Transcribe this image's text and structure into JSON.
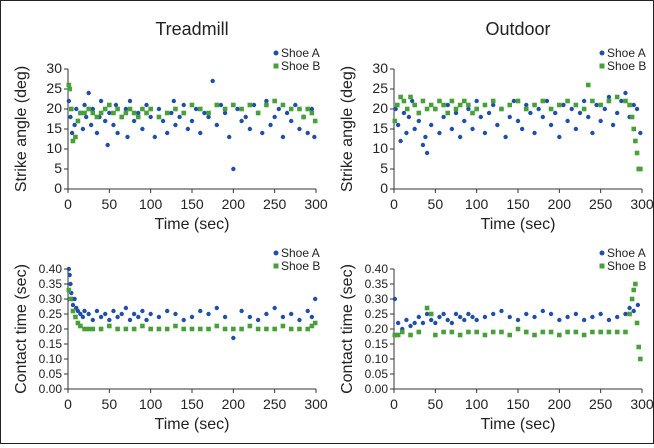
{
  "chart_data": [
    {
      "type": "scatter",
      "title": "Treadmill",
      "xlabel": "Time (sec)",
      "ylabel": "Strike angle (deg)",
      "xlim": [
        0,
        300
      ],
      "ylim": [
        0,
        30
      ],
      "xticks": [
        0,
        50,
        100,
        150,
        200,
        250,
        300
      ],
      "yticks": [
        0,
        5,
        10,
        15,
        20,
        25,
        30
      ],
      "ytick_decimals": 0,
      "legend": "top-right",
      "series": [
        {
          "name": "Shoe A",
          "color": "#1f4fa8",
          "x": [
            1,
            3,
            5,
            8,
            10,
            12,
            15,
            18,
            20,
            22,
            25,
            28,
            30,
            35,
            38,
            40,
            45,
            48,
            50,
            55,
            58,
            60,
            65,
            70,
            72,
            75,
            80,
            85,
            90,
            95,
            100,
            105,
            110,
            115,
            120,
            125,
            128,
            130,
            135,
            140,
            145,
            150,
            155,
            160,
            165,
            170,
            175,
            180,
            185,
            190,
            195,
            200,
            205,
            210,
            215,
            220,
            225,
            230,
            235,
            240,
            245,
            250,
            255,
            260,
            265,
            270,
            275,
            280,
            285,
            290,
            295,
            298
          ],
          "y": [
            22,
            18,
            14,
            16,
            20,
            17,
            19,
            15,
            21,
            18,
            24,
            16,
            20,
            14,
            18,
            22,
            17,
            11,
            19,
            16,
            21,
            14,
            18,
            20,
            13,
            22,
            17,
            19,
            15,
            21,
            18,
            13,
            20,
            17,
            14,
            19,
            22,
            16,
            18,
            21,
            15,
            17,
            20,
            14,
            19,
            18,
            27,
            16,
            21,
            19,
            13,
            5,
            20,
            17,
            18,
            15,
            21,
            19,
            14,
            22,
            16,
            18,
            20,
            13,
            19,
            17,
            21,
            15,
            18,
            14,
            20,
            13
          ]
        },
        {
          "name": "Shoe B",
          "color": "#49a03a",
          "x": [
            1,
            2,
            4,
            6,
            9,
            12,
            15,
            20,
            25,
            30,
            35,
            40,
            45,
            50,
            55,
            60,
            65,
            70,
            75,
            80,
            85,
            90,
            95,
            100,
            110,
            120,
            130,
            140,
            150,
            160,
            170,
            180,
            190,
            200,
            210,
            220,
            230,
            240,
            250,
            260,
            270,
            280,
            285,
            290,
            295,
            299
          ],
          "y": [
            26,
            25,
            20,
            12,
            13,
            17,
            19,
            19,
            20,
            19,
            18,
            19,
            20,
            21,
            19,
            20,
            18,
            19,
            20,
            19,
            18,
            20,
            19,
            20,
            18,
            19,
            20,
            19,
            21,
            20,
            19,
            21,
            20,
            21,
            20,
            21,
            19,
            21,
            22,
            21,
            20,
            20,
            18,
            20,
            19,
            17
          ]
        }
      ]
    },
    {
      "type": "scatter",
      "title": "Outdoor",
      "xlabel": "Time (sec)",
      "ylabel": "Strike angle (deg)",
      "xlim": [
        0,
        300
      ],
      "ylim": [
        0,
        30
      ],
      "xticks": [
        0,
        50,
        100,
        150,
        200,
        250,
        300
      ],
      "yticks": [
        0,
        5,
        10,
        15,
        20,
        25,
        30
      ],
      "ytick_decimals": 0,
      "legend": "top-right",
      "series": [
        {
          "name": "Shoe A",
          "color": "#1f4fa8",
          "x": [
            2,
            5,
            8,
            12,
            15,
            18,
            22,
            25,
            30,
            35,
            38,
            40,
            45,
            50,
            55,
            60,
            65,
            70,
            75,
            80,
            85,
            90,
            95,
            100,
            105,
            110,
            115,
            120,
            125,
            130,
            135,
            140,
            145,
            150,
            155,
            160,
            165,
            170,
            175,
            180,
            185,
            190,
            195,
            200,
            205,
            210,
            215,
            220,
            225,
            230,
            235,
            240,
            245,
            250,
            255,
            260,
            265,
            270,
            275,
            280,
            285,
            290,
            294,
            298
          ],
          "y": [
            20,
            16,
            12,
            19,
            14,
            18,
            22,
            15,
            17,
            11,
            13,
            9,
            16,
            20,
            14,
            18,
            21,
            15,
            19,
            13,
            17,
            20,
            15,
            22,
            18,
            14,
            19,
            21,
            16,
            20,
            13,
            18,
            22,
            17,
            15,
            21,
            19,
            14,
            20,
            18,
            22,
            16,
            19,
            13,
            21,
            17,
            20,
            15,
            19,
            22,
            18,
            14,
            21,
            17,
            20,
            23,
            16,
            19,
            22,
            24,
            18,
            21,
            20,
            14
          ]
        },
        {
          "name": "Shoe B",
          "color": "#49a03a",
          "x": [
            1,
            4,
            8,
            12,
            16,
            20,
            25,
            30,
            35,
            40,
            45,
            50,
            55,
            60,
            65,
            70,
            75,
            80,
            85,
            90,
            95,
            100,
            110,
            120,
            130,
            140,
            150,
            160,
            170,
            180,
            190,
            200,
            210,
            220,
            230,
            235,
            240,
            250,
            260,
            270,
            280,
            285,
            288,
            290,
            292,
            294,
            296,
            298
          ],
          "y": [
            17,
            21,
            23,
            22,
            20,
            23,
            21,
            19,
            22,
            20,
            21,
            20,
            22,
            21,
            19,
            22,
            20,
            21,
            22,
            21,
            19,
            20,
            21,
            22,
            20,
            21,
            22,
            20,
            21,
            22,
            20,
            21,
            22,
            21,
            20,
            26,
            22,
            21,
            22,
            23,
            22,
            21,
            18,
            15,
            12,
            9,
            5,
            5
          ]
        }
      ]
    },
    {
      "type": "scatter",
      "title": "",
      "xlabel": "Time (sec)",
      "ylabel": "Contact time (sec)",
      "xlim": [
        0,
        300
      ],
      "ylim": [
        0,
        0.4
      ],
      "xticks": [
        0,
        50,
        100,
        150,
        200,
        250,
        300
      ],
      "yticks": [
        0.0,
        0.05,
        0.1,
        0.15,
        0.2,
        0.25,
        0.3,
        0.35,
        0.4
      ],
      "ytick_decimals": 2,
      "legend": "top-right",
      "series": [
        {
          "name": "Shoe A",
          "color": "#1f4fa8",
          "x": [
            1,
            2,
            3,
            4,
            5,
            6,
            8,
            10,
            12,
            15,
            18,
            20,
            25,
            30,
            35,
            40,
            45,
            50,
            55,
            60,
            65,
            70,
            75,
            80,
            85,
            90,
            95,
            100,
            110,
            120,
            130,
            140,
            150,
            160,
            170,
            180,
            190,
            200,
            210,
            220,
            230,
            240,
            250,
            260,
            270,
            280,
            290,
            295,
            299
          ],
          "y": [
            0.4,
            0.38,
            0.35,
            0.32,
            0.3,
            0.28,
            0.3,
            0.27,
            0.26,
            0.25,
            0.24,
            0.26,
            0.25,
            0.23,
            0.26,
            0.24,
            0.25,
            0.23,
            0.26,
            0.24,
            0.25,
            0.27,
            0.23,
            0.25,
            0.24,
            0.26,
            0.23,
            0.25,
            0.24,
            0.26,
            0.25,
            0.23,
            0.24,
            0.26,
            0.25,
            0.27,
            0.24,
            0.17,
            0.26,
            0.24,
            0.23,
            0.25,
            0.27,
            0.24,
            0.25,
            0.23,
            0.26,
            0.24,
            0.3
          ]
        },
        {
          "name": "Shoe B",
          "color": "#49a03a",
          "x": [
            1,
            3,
            6,
            9,
            12,
            15,
            20,
            25,
            30,
            40,
            50,
            60,
            70,
            80,
            90,
            100,
            110,
            120,
            130,
            140,
            150,
            160,
            170,
            180,
            190,
            200,
            210,
            220,
            230,
            240,
            250,
            260,
            270,
            280,
            290,
            295,
            299
          ],
          "y": [
            0.33,
            0.3,
            0.26,
            0.24,
            0.22,
            0.21,
            0.2,
            0.2,
            0.2,
            0.2,
            0.21,
            0.2,
            0.2,
            0.2,
            0.21,
            0.2,
            0.2,
            0.2,
            0.21,
            0.2,
            0.2,
            0.2,
            0.2,
            0.21,
            0.2,
            0.2,
            0.2,
            0.21,
            0.2,
            0.2,
            0.2,
            0.21,
            0.2,
            0.2,
            0.2,
            0.21,
            0.22
          ]
        }
      ]
    },
    {
      "type": "scatter",
      "title": "",
      "xlabel": "Time (sec)",
      "ylabel": "Contact time (sec)",
      "xlim": [
        0,
        300
      ],
      "ylim": [
        0,
        0.4
      ],
      "xticks": [
        0,
        50,
        100,
        150,
        200,
        250,
        300
      ],
      "yticks": [
        0.0,
        0.05,
        0.1,
        0.15,
        0.2,
        0.25,
        0.3,
        0.35,
        0.4
      ],
      "ytick_decimals": 2,
      "legend": "top-right",
      "series": [
        {
          "name": "Shoe A",
          "color": "#1f4fa8",
          "x": [
            1,
            5,
            10,
            15,
            20,
            25,
            30,
            35,
            40,
            45,
            50,
            55,
            60,
            65,
            70,
            75,
            80,
            85,
            90,
            95,
            100,
            110,
            120,
            130,
            140,
            150,
            160,
            170,
            180,
            190,
            200,
            210,
            220,
            230,
            240,
            250,
            260,
            270,
            280,
            285,
            290,
            295
          ],
          "y": [
            0.3,
            0.22,
            0.2,
            0.23,
            0.21,
            0.22,
            0.24,
            0.22,
            0.25,
            0.23,
            0.22,
            0.24,
            0.25,
            0.23,
            0.22,
            0.25,
            0.24,
            0.23,
            0.25,
            0.24,
            0.23,
            0.24,
            0.25,
            0.26,
            0.24,
            0.23,
            0.25,
            0.24,
            0.26,
            0.25,
            0.23,
            0.24,
            0.25,
            0.23,
            0.24,
            0.25,
            0.23,
            0.24,
            0.25,
            0.27,
            0.26,
            0.28
          ]
        },
        {
          "name": "Shoe B",
          "color": "#49a03a",
          "x": [
            1,
            5,
            10,
            20,
            30,
            40,
            45,
            50,
            60,
            70,
            80,
            90,
            100,
            110,
            120,
            130,
            140,
            150,
            160,
            170,
            180,
            190,
            200,
            210,
            220,
            230,
            240,
            250,
            260,
            270,
            280,
            285,
            288,
            290,
            292,
            294,
            296,
            298
          ],
          "y": [
            0.18,
            0.18,
            0.19,
            0.18,
            0.19,
            0.27,
            0.25,
            0.18,
            0.19,
            0.19,
            0.18,
            0.19,
            0.19,
            0.18,
            0.19,
            0.19,
            0.18,
            0.2,
            0.19,
            0.18,
            0.19,
            0.19,
            0.18,
            0.19,
            0.19,
            0.18,
            0.19,
            0.19,
            0.19,
            0.19,
            0.19,
            0.25,
            0.3,
            0.33,
            0.35,
            0.22,
            0.14,
            0.1
          ]
        }
      ]
    }
  ]
}
